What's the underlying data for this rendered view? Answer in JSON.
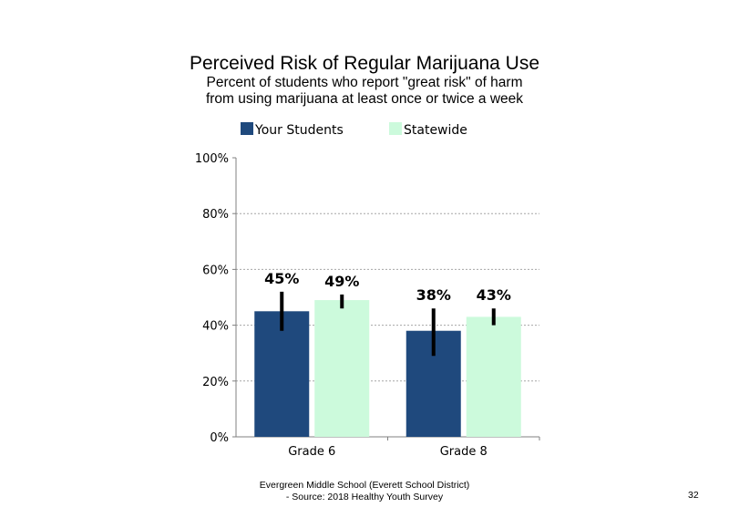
{
  "chart_data": {
    "type": "bar",
    "title": "Perceived Risk of Regular Marijuana Use",
    "subtitle": [
      "Percent of students who report \"great risk\" of harm",
      "from using marijuana at least once or twice a week"
    ],
    "categories": [
      "Grade 6",
      "Grade 8"
    ],
    "series": [
      {
        "name": "Your Students",
        "color": "#1f497d",
        "values": [
          45,
          38
        ],
        "labels": [
          "45%",
          "38%"
        ],
        "error_low": [
          38,
          29
        ],
        "error_high": [
          52,
          46
        ]
      },
      {
        "name": "Statewide",
        "color": "#ccfadc",
        "values": [
          49,
          43
        ],
        "labels": [
          "49%",
          "43%"
        ],
        "error_low": [
          46,
          40
        ],
        "error_high": [
          51,
          46
        ]
      }
    ],
    "yticks": [
      "0%",
      "20%",
      "40%",
      "60%",
      "80%",
      "100%"
    ],
    "ylim": [
      0,
      100
    ],
    "grid": true,
    "legend": "top"
  },
  "footer": {
    "line1": "Evergreen Middle School (Everett School District)",
    "line2": "- Source: 2018 Healthy Youth Survey",
    "page_number": "32"
  }
}
